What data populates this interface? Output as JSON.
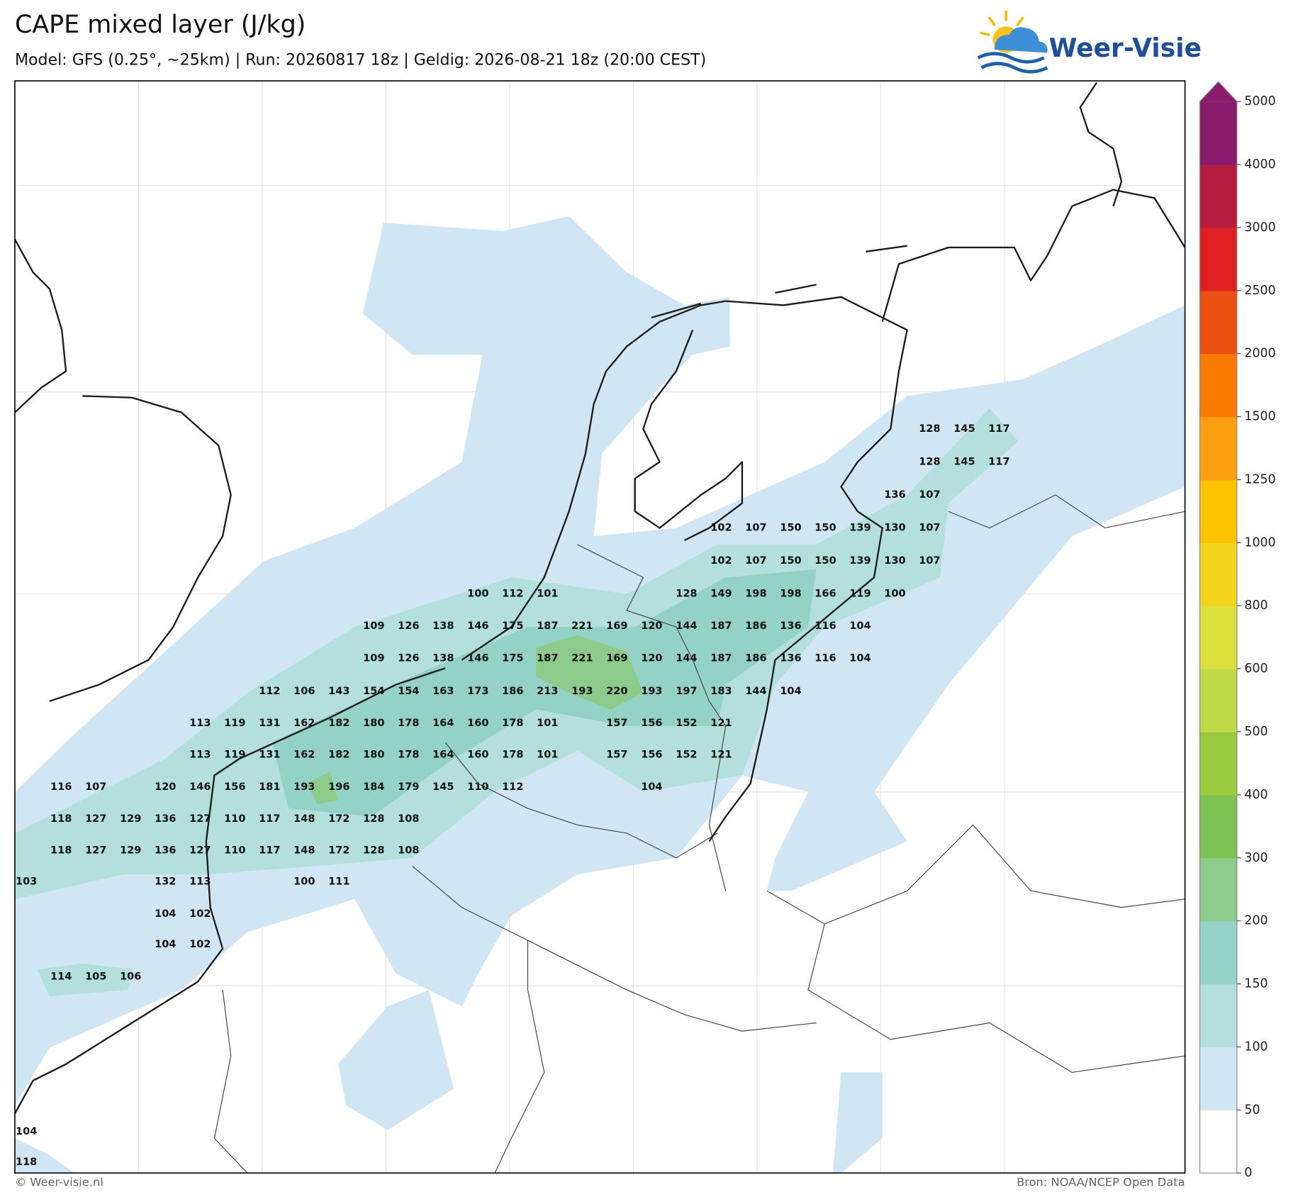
{
  "header": {
    "title": "CAPE mixed layer (J/kg)",
    "subtitle": "Model: GFS (0.25°, ~25km)  |  Run: 20260817 18z  |  Geldig: 2026-08-21 18z (20:00 CEST)"
  },
  "logo": {
    "text": "Weer-Visie"
  },
  "colorbar": {
    "ticks": [
      0,
      50,
      100,
      150,
      200,
      300,
      400,
      500,
      600,
      800,
      1000,
      1250,
      1500,
      2000,
      2500,
      3000,
      4000,
      5000
    ],
    "colors": [
      "#ffffff",
      "#d0e6f5",
      "#b3e0dc",
      "#93d2c4",
      "#8ccb8a",
      "#7cc353",
      "#9bcc3f",
      "#c0d948",
      "#dbe03c",
      "#f2d41c",
      "#fbc300",
      "#fd9f10",
      "#f97b02",
      "#eb5013",
      "#df2020",
      "#b61c3e",
      "#8a1a6b"
    ]
  },
  "map": {
    "labels": [
      [
        128,
        145,
        117
      ],
      [
        128,
        145,
        117
      ],
      [
        136,
        107
      ],
      [
        102,
        107,
        150,
        150,
        139,
        130,
        107
      ],
      [
        102,
        107,
        150,
        150,
        139,
        130,
        107
      ],
      [
        100,
        112,
        101,
        128,
        149,
        198,
        198,
        166,
        119,
        100
      ],
      [
        109,
        126,
        138,
        146,
        175,
        187,
        221,
        169,
        120,
        144,
        187,
        186,
        136,
        116,
        104
      ],
      [
        109,
        126,
        138,
        146,
        175,
        187,
        221,
        169,
        120,
        144,
        187,
        186,
        136,
        116,
        104
      ],
      [
        112,
        106,
        143,
        154,
        154,
        163,
        173,
        186,
        213,
        193,
        220,
        193,
        197,
        183,
        144,
        104
      ],
      [
        113,
        119,
        131,
        162,
        182,
        180,
        178,
        164,
        160,
        178,
        101,
        157,
        156,
        152,
        121
      ],
      [
        113,
        119,
        131,
        162,
        182,
        180,
        178,
        164,
        160,
        178,
        101,
        157,
        156,
        152,
        121
      ],
      [
        116,
        107,
        120,
        146,
        156,
        181,
        193,
        196,
        184,
        179,
        145,
        110,
        112,
        104
      ],
      [
        118,
        127,
        129,
        136,
        127,
        110,
        117,
        148,
        172,
        128,
        108
      ],
      [
        118,
        127,
        129,
        136,
        127,
        110,
        117,
        148,
        172,
        128,
        108
      ],
      [
        103,
        132,
        113,
        100,
        111
      ],
      [
        104,
        102
      ],
      [
        104,
        102
      ],
      [
        114,
        105,
        106
      ],
      [
        104
      ],
      [
        118
      ]
    ]
  },
  "footer": {
    "credit": "© Weer-visie.nl",
    "source": "Bron: NOAA/NCEP Open Data"
  }
}
